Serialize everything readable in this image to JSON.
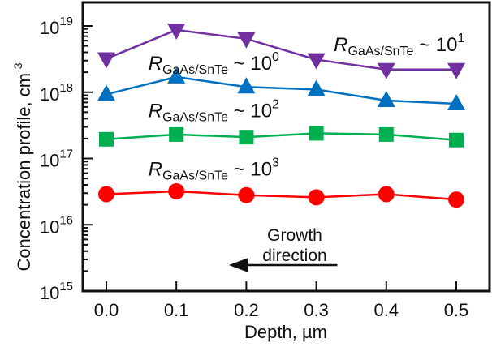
{
  "chart_data": {
    "type": "line",
    "title": "",
    "xlabel": "Depth, µm",
    "ylabel": "Concentration profile, cm",
    "ylabel_superscript": "-3",
    "xlim": [
      -0.035,
      0.547
    ],
    "ylim": [
      1000000000000000.0,
      1e+19
    ],
    "yscale": "log",
    "x": [
      0.0,
      0.1,
      0.2,
      0.3,
      0.4,
      0.5
    ],
    "x_ticks": [
      "0.0",
      "0.1",
      "0.2",
      "0.3",
      "0.4",
      "0.5"
    ],
    "y_ticks": [
      {
        "base": "10",
        "exp": "15",
        "value": 1000000000000000.0
      },
      {
        "base": "10",
        "exp": "16",
        "value": 1e+16
      },
      {
        "base": "10",
        "exp": "17",
        "value": 1e+17
      },
      {
        "base": "10",
        "exp": "18",
        "value": 1e+18
      },
      {
        "base": "10",
        "exp": "19",
        "value": 1e+19
      }
    ],
    "grid": false,
    "series": [
      {
        "name": "R_GaAs/SnTe ~ 10^1",
        "color": "#7030a0",
        "marker": "triangle-down",
        "values": [
          3.2e+18,
          8.7e+18,
          6.4e+18,
          3.1e+18,
          2.2e+18,
          2.2e+18
        ]
      },
      {
        "name": "R_GaAs/SnTe ~ 10^0",
        "color": "#0070c0",
        "marker": "triangle-up",
        "values": [
          9.3e+17,
          1.7e+18,
          1.2e+18,
          1.1e+18,
          7.5e+17,
          6.7e+17
        ]
      },
      {
        "name": "R_GaAs/SnTe ~ 10^2",
        "color": "#00b050",
        "marker": "square",
        "values": [
          1.95e+17,
          2.3e+17,
          2.1e+17,
          2.4e+17,
          2.3e+17,
          1.9e+17
        ]
      },
      {
        "name": "R_GaAs/SnTe ~ 10^3",
        "color": "#ff0000",
        "marker": "circle",
        "values": [
          2.9e+16,
          3.2e+16,
          2.8e+16,
          2.6e+16,
          2.9e+16,
          2.4e+16
        ]
      }
    ],
    "annotations": [
      {
        "italic": "R",
        "sub": "GaAs/SnTe",
        "rest": " ~ 10",
        "sup": "1",
        "anchor_x": 0.325,
        "anchor_y": 4.2e+18
      },
      {
        "italic": "R",
        "sub": "GaAs/SnTe",
        "rest": " ~ 10",
        "sup": "0",
        "anchor_x": 0.06,
        "anchor_y": 2.2e+18
      },
      {
        "italic": "R",
        "sub": "GaAs/SnTe",
        "rest": " ~ 10",
        "sup": "2",
        "anchor_x": 0.06,
        "anchor_y": 4.2e+17
      },
      {
        "italic": "R",
        "sub": "GaAs/SnTe",
        "rest": " ~ 10",
        "sup": "3",
        "anchor_x": 0.06,
        "anchor_y": 5.5e+16
      }
    ],
    "arrow_annotation": {
      "text_line1": "Growth",
      "text_line2": "direction",
      "direction": "left",
      "from_x": 0.33,
      "to_x": 0.175,
      "y": 1220000000000000.0
    }
  }
}
